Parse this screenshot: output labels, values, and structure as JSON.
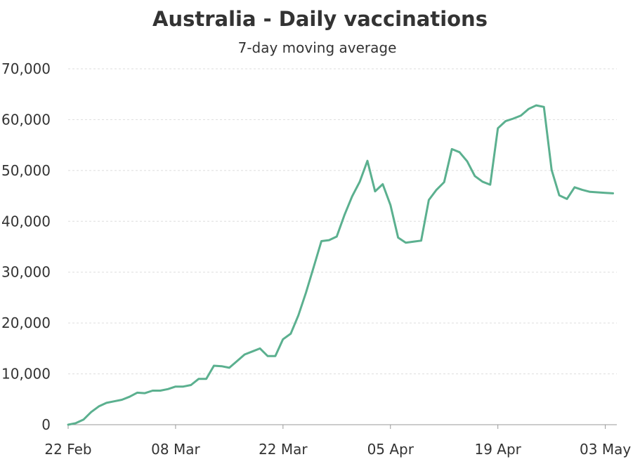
{
  "chart_data": {
    "type": "line",
    "title": "Australia - Daily vaccinations",
    "subtitle": "7-day moving average",
    "xlabel": "",
    "ylabel": "",
    "x_start": "2021-02-22",
    "x_range": [
      "2021-02-22",
      "2021-05-03"
    ],
    "ylim": [
      0,
      70000
    ],
    "y_ticks": [
      0,
      10000,
      20000,
      30000,
      40000,
      50000,
      60000,
      70000
    ],
    "y_tick_labels": [
      "0",
      "10,000",
      "20,000",
      "30,000",
      "40,000",
      "50,000",
      "60,000",
      "70,000"
    ],
    "x_ticks": [
      "2021-02-22",
      "2021-03-08",
      "2021-03-22",
      "2021-04-05",
      "2021-04-19",
      "2021-05-03"
    ],
    "x_tick_labels": [
      "22 Feb",
      "08 Mar",
      "22 Mar",
      "05 Apr",
      "19 Apr",
      "03 May"
    ],
    "grid": "horizontal-dashed",
    "line_color": "#5bb08f",
    "series": [
      {
        "x": [
          "2021-02-22",
          "2021-02-23",
          "2021-02-24",
          "2021-02-25",
          "2021-02-26",
          "2021-02-27",
          "2021-02-28",
          "2021-03-01",
          "2021-03-02",
          "2021-03-03",
          "2021-03-04",
          "2021-03-05",
          "2021-03-06",
          "2021-03-07",
          "2021-03-08",
          "2021-03-09",
          "2021-03-10",
          "2021-03-11",
          "2021-03-12",
          "2021-03-13",
          "2021-03-14",
          "2021-03-15",
          "2021-03-16",
          "2021-03-17",
          "2021-03-18",
          "2021-03-19",
          "2021-03-20",
          "2021-03-21",
          "2021-03-22",
          "2021-03-23",
          "2021-03-24",
          "2021-03-25",
          "2021-03-26",
          "2021-03-27",
          "2021-03-28",
          "2021-03-29",
          "2021-03-30",
          "2021-03-31",
          "2021-04-01",
          "2021-04-02",
          "2021-04-03",
          "2021-04-04",
          "2021-04-05",
          "2021-04-06",
          "2021-04-07",
          "2021-04-08",
          "2021-04-09",
          "2021-04-10",
          "2021-04-11",
          "2021-04-12",
          "2021-04-13",
          "2021-04-14",
          "2021-04-15",
          "2021-04-16",
          "2021-04-17",
          "2021-04-18",
          "2021-04-19",
          "2021-04-20",
          "2021-04-21",
          "2021-04-22",
          "2021-04-23",
          "2021-04-24",
          "2021-04-25",
          "2021-04-26",
          "2021-04-27",
          "2021-04-28",
          "2021-04-29",
          "2021-04-30",
          "2021-05-01",
          "2021-05-02",
          "2021-05-03",
          "2021-05-04"
        ],
        "values": [
          0,
          300,
          1000,
          2500,
          3600,
          4300,
          4600,
          4900,
          5500,
          6300,
          6200,
          6700,
          6700,
          7000,
          7500,
          7500,
          7800,
          9000,
          9000,
          11600,
          11500,
          11200,
          12500,
          13800,
          14400,
          15000,
          13500,
          13500,
          16800,
          17900,
          21500,
          26000,
          31000,
          36100,
          36300,
          37000,
          41200,
          44900,
          47800,
          51900,
          45900,
          47300,
          43200,
          36800,
          35800,
          36000,
          36200,
          44200,
          46200,
          47700,
          54200,
          53600,
          51800,
          48900,
          47800,
          47200,
          58300,
          59700,
          60200,
          60800,
          62100,
          62800,
          62500,
          50100,
          45100,
          44400,
          46700,
          46200,
          45800,
          45700,
          45600,
          45500
        ]
      }
    ]
  }
}
